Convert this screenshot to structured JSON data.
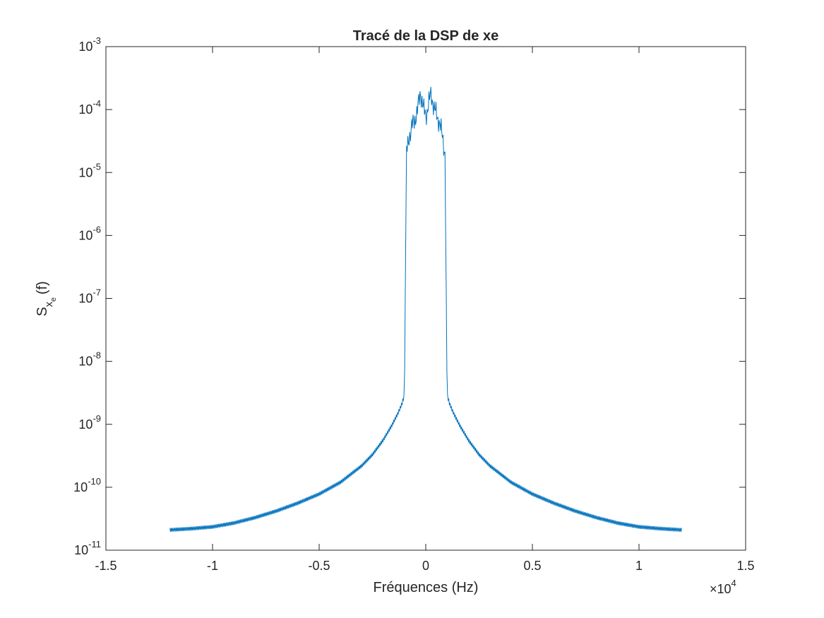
{
  "chart_data": {
    "type": "line",
    "title": "Tracé de la DSP de xe",
    "xlabel": "Fréquences (Hz)",
    "ylabel": {
      "base": "S",
      "sub": "x",
      "subsub": "e",
      "suffix": "(f)"
    },
    "x_scale_label": {
      "prefix": "×10",
      "exp": "4"
    },
    "xscale": "linear",
    "yscale": "log",
    "xlim": [
      -15000,
      15000
    ],
    "ylim": [
      1e-11,
      0.001
    ],
    "xticks": [
      {
        "value": -15000,
        "label": "-1.5"
      },
      {
        "value": -10000,
        "label": "-1"
      },
      {
        "value": -5000,
        "label": "-0.5"
      },
      {
        "value": 0,
        "label": "0"
      },
      {
        "value": 5000,
        "label": "0.5"
      },
      {
        "value": 10000,
        "label": "1"
      },
      {
        "value": 15000,
        "label": "1.5"
      }
    ],
    "yticks": [
      {
        "value": 1e-11,
        "base": "10",
        "exp": "-11"
      },
      {
        "value": 1e-10,
        "base": "10",
        "exp": "-10"
      },
      {
        "value": 1e-09,
        "base": "10",
        "exp": "-9"
      },
      {
        "value": 1e-08,
        "base": "10",
        "exp": "-8"
      },
      {
        "value": 1e-07,
        "base": "10",
        "exp": "-7"
      },
      {
        "value": 1e-06,
        "base": "10",
        "exp": "-6"
      },
      {
        "value": 1e-05,
        "base": "10",
        "exp": "-5"
      },
      {
        "value": 0.0001,
        "base": "10",
        "exp": "-4"
      },
      {
        "value": 0.001,
        "base": "10",
        "exp": "-3"
      }
    ],
    "grid": false,
    "legend": "none",
    "series": [
      {
        "color": "#0072BD",
        "x": [
          -12000,
          -11000,
          -10000,
          -9000,
          -8000,
          -7000,
          -6000,
          -5000,
          -4000,
          -3000,
          -2500,
          -2000,
          -1600,
          -1300,
          -1100,
          -1000,
          -950,
          -900,
          -800,
          -600,
          -400,
          -250,
          -100,
          0,
          100,
          250,
          400,
          600,
          800,
          900,
          950,
          1000,
          1100,
          1300,
          1600,
          2000,
          2500,
          3000,
          4000,
          5000,
          6000,
          7000,
          8000,
          9000,
          10000,
          11000,
          12000
        ],
        "y": [
          2.1e-11,
          2.2e-11,
          2.35e-11,
          2.7e-11,
          3.3e-11,
          4.2e-11,
          5.6e-11,
          7.8e-11,
          1.2e-10,
          2.2e-10,
          3.3e-10,
          5.6e-10,
          9.5e-10,
          1.5e-09,
          2.2e-09,
          3e-09,
          3e-07,
          2e-05,
          3.5e-05,
          6e-05,
          9e-05,
          0.00019,
          0.0001,
          8e-05,
          0.00011,
          0.00018,
          0.0001,
          7e-05,
          3.5e-05,
          2e-05,
          3e-07,
          3e-09,
          2.2e-09,
          1.5e-09,
          9.5e-10,
          5.6e-10,
          3.3e-10,
          2.2e-10,
          1.2e-10,
          7.8e-11,
          5.6e-11,
          4.2e-11,
          3.3e-11,
          2.7e-11,
          2.35e-11,
          2.2e-11,
          2.1e-11
        ],
        "ripple_ratio": 1.15
      }
    ]
  }
}
